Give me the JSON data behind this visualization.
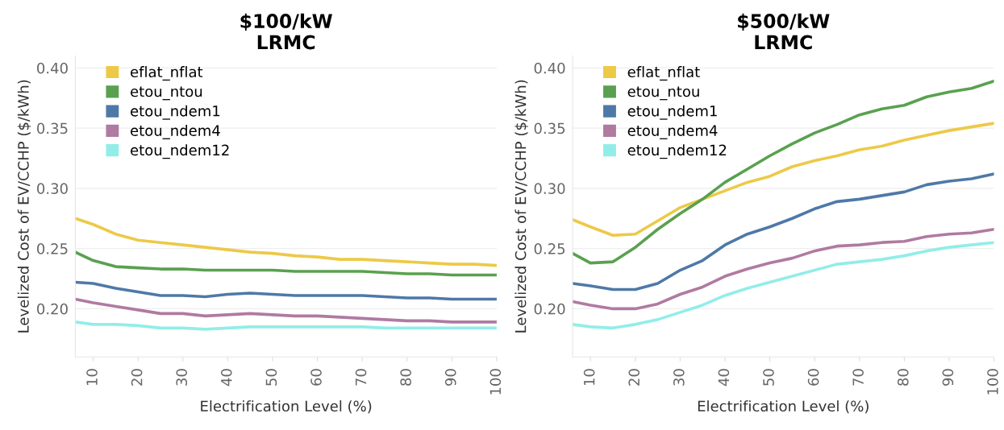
{
  "chart_data": [
    {
      "type": "line",
      "title": "$100/kW\nLRMC",
      "xlabel": "Electrification Level (%)",
      "ylabel": "Levelized Cost of EV/CCHP ($/kWh)",
      "x": [
        6,
        10,
        15,
        20,
        25,
        30,
        35,
        40,
        45,
        50,
        55,
        60,
        65,
        70,
        75,
        80,
        85,
        90,
        95,
        100
      ],
      "xlim": [
        6,
        100
      ],
      "xticks": [
        10,
        20,
        30,
        40,
        50,
        60,
        70,
        80,
        90,
        100
      ],
      "ylim": [
        0.16,
        0.41
      ],
      "yticks": [
        {
          "value": 0.2,
          "label": "0.20"
        },
        {
          "value": 0.25,
          "label": "0.25"
        },
        {
          "value": 0.3,
          "label": "0.30"
        },
        {
          "value": 0.35,
          "label": "0.35"
        },
        {
          "value": 0.4,
          "label": "0.40"
        }
      ],
      "grid": "y",
      "legend": "top left",
      "series": [
        {
          "name": "eflat_nflat",
          "color": "#edc948",
          "values": [
            0.275,
            0.27,
            0.262,
            0.257,
            0.255,
            0.253,
            0.251,
            0.249,
            0.247,
            0.246,
            0.244,
            0.243,
            0.241,
            0.241,
            0.24,
            0.239,
            0.238,
            0.237,
            0.237,
            0.236
          ]
        },
        {
          "name": "etou_ntou",
          "color": "#59a14f",
          "values": [
            0.247,
            0.24,
            0.235,
            0.234,
            0.233,
            0.233,
            0.232,
            0.232,
            0.232,
            0.232,
            0.231,
            0.231,
            0.231,
            0.231,
            0.23,
            0.229,
            0.229,
            0.228,
            0.228,
            0.228
          ]
        },
        {
          "name": "etou_ndem1",
          "color": "#4e79a7",
          "values": [
            0.222,
            0.221,
            0.217,
            0.214,
            0.211,
            0.211,
            0.21,
            0.212,
            0.213,
            0.212,
            0.211,
            0.211,
            0.211,
            0.211,
            0.21,
            0.209,
            0.209,
            0.208,
            0.208,
            0.208
          ]
        },
        {
          "name": "etou_ndem4",
          "color": "#b07aa1",
          "values": [
            0.208,
            0.205,
            0.202,
            0.199,
            0.196,
            0.196,
            0.194,
            0.195,
            0.196,
            0.195,
            0.194,
            0.194,
            0.193,
            0.192,
            0.191,
            0.19,
            0.19,
            0.189,
            0.189,
            0.189
          ]
        },
        {
          "name": "etou_ndem12",
          "color": "#92ede9",
          "values": [
            0.189,
            0.187,
            0.187,
            0.186,
            0.184,
            0.184,
            0.183,
            0.184,
            0.185,
            0.185,
            0.185,
            0.185,
            0.185,
            0.185,
            0.184,
            0.184,
            0.184,
            0.184,
            0.184,
            0.184
          ]
        }
      ]
    },
    {
      "type": "line",
      "title": "$500/kW\nLRMC",
      "xlabel": "Electrification Level (%)",
      "ylabel": "Levelized Cost of EV/CCHP ($/kWh)",
      "x": [
        6,
        10,
        15,
        20,
        25,
        30,
        35,
        40,
        45,
        50,
        55,
        60,
        65,
        70,
        75,
        80,
        85,
        90,
        95,
        100
      ],
      "xlim": [
        6,
        100
      ],
      "xticks": [
        10,
        20,
        30,
        40,
        50,
        60,
        70,
        80,
        90,
        100
      ],
      "ylim": [
        0.16,
        0.41
      ],
      "yticks": [
        {
          "value": 0.2,
          "label": "0.20"
        },
        {
          "value": 0.25,
          "label": "0.25"
        },
        {
          "value": 0.3,
          "label": "0.30"
        },
        {
          "value": 0.35,
          "label": "0.35"
        },
        {
          "value": 0.4,
          "label": "0.40"
        }
      ],
      "grid": "y",
      "legend": "top left",
      "series": [
        {
          "name": "eflat_nflat",
          "color": "#edc948",
          "values": [
            0.274,
            0.268,
            0.261,
            0.262,
            0.273,
            0.284,
            0.291,
            0.298,
            0.305,
            0.31,
            0.318,
            0.323,
            0.327,
            0.332,
            0.335,
            0.34,
            0.344,
            0.348,
            0.351,
            0.354
          ]
        },
        {
          "name": "etou_ntou",
          "color": "#59a14f",
          "values": [
            0.246,
            0.238,
            0.239,
            0.251,
            0.266,
            0.279,
            0.291,
            0.305,
            0.316,
            0.327,
            0.337,
            0.346,
            0.353,
            0.361,
            0.366,
            0.369,
            0.376,
            0.38,
            0.383,
            0.389
          ]
        },
        {
          "name": "etou_ndem1",
          "color": "#4e79a7",
          "values": [
            0.221,
            0.219,
            0.216,
            0.216,
            0.221,
            0.232,
            0.24,
            0.253,
            0.262,
            0.268,
            0.275,
            0.283,
            0.289,
            0.291,
            0.294,
            0.297,
            0.303,
            0.306,
            0.308,
            0.312
          ]
        },
        {
          "name": "etou_ndem4",
          "color": "#b07aa1",
          "values": [
            0.206,
            0.203,
            0.2,
            0.2,
            0.204,
            0.212,
            0.218,
            0.227,
            0.233,
            0.238,
            0.242,
            0.248,
            0.252,
            0.253,
            0.255,
            0.256,
            0.26,
            0.262,
            0.263,
            0.266
          ]
        },
        {
          "name": "etou_ndem12",
          "color": "#92ede9",
          "values": [
            0.187,
            0.185,
            0.184,
            0.187,
            0.191,
            0.197,
            0.203,
            0.211,
            0.217,
            0.222,
            0.227,
            0.232,
            0.237,
            0.239,
            0.241,
            0.244,
            0.248,
            0.251,
            0.253,
            0.255
          ]
        }
      ]
    }
  ]
}
